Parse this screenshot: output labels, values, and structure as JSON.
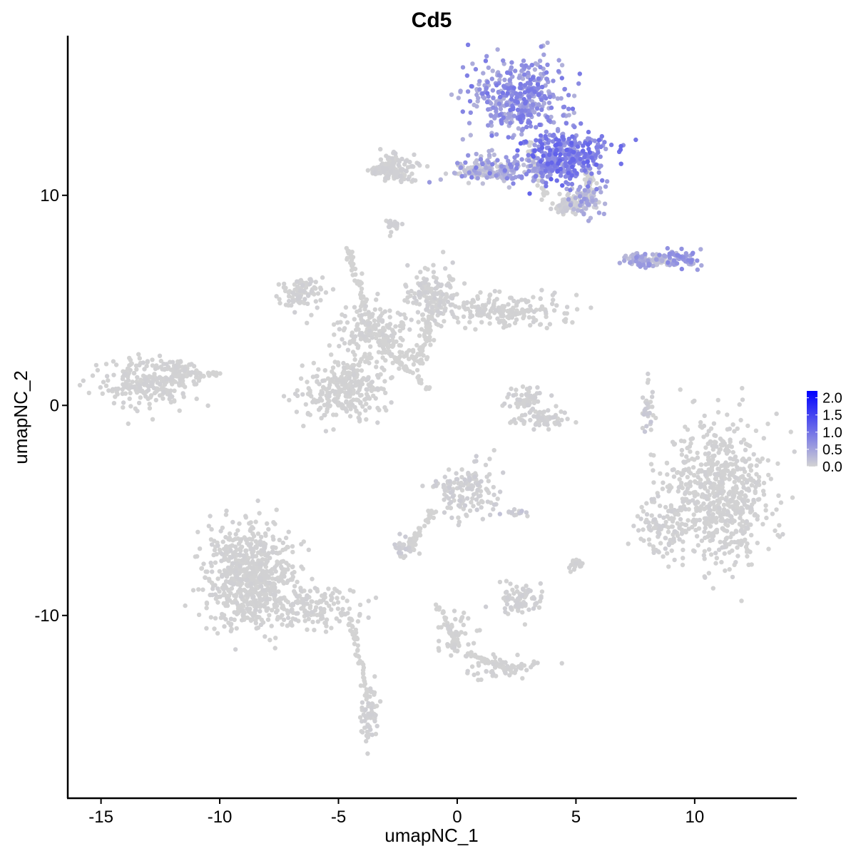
{
  "chart_data": {
    "type": "scatter",
    "title": "Cd5",
    "xlabel": "umapNC_1",
    "ylabel": "umapNC_2",
    "xlim": [
      -16.4,
      14.3
    ],
    "ylim": [
      -18.7,
      17.6
    ],
    "x_ticks": [
      -15,
      -10,
      -5,
      0,
      5,
      10
    ],
    "y_ticks": [
      -10,
      0,
      10
    ],
    "x_tick_labels": [
      "-15",
      "-10",
      "-5",
      "0",
      "5",
      "10"
    ],
    "y_tick_labels": [
      "-10",
      "0",
      "10"
    ],
    "grid": false,
    "color_scale": {
      "low_color": "#d3d3d3",
      "high_color": "#0000ff",
      "min": 0.0,
      "max": 2.2,
      "ticks": [
        0.0,
        0.5,
        1.0,
        1.5,
        2.0
      ],
      "tick_labels": [
        "0.0",
        "0.5",
        "1.0",
        "1.5",
        "2.0"
      ],
      "legend_position": "right"
    },
    "clusters": [
      {
        "cx": 2.6,
        "cy": 14.6,
        "sx": 1.3,
        "sy": 1.1,
        "n": 420,
        "expr": [
          0.35,
          1.0
        ]
      },
      {
        "cx": 4.5,
        "cy": 11.8,
        "sx": 1.1,
        "sy": 0.7,
        "n": 360,
        "expr": [
          0.55,
          1.2
        ]
      },
      {
        "cx": 2.0,
        "cy": 11.2,
        "sx": 1.4,
        "sy": 0.4,
        "n": 150,
        "expr": [
          0.2,
          0.9
        ]
      },
      {
        "cx": 5.4,
        "cy": 9.8,
        "sx": 0.5,
        "sy": 0.4,
        "n": 80,
        "expr": [
          0.0,
          0.7
        ]
      },
      {
        "cx": 4.6,
        "cy": 9.6,
        "sx": 0.4,
        "sy": 0.3,
        "n": 60,
        "expr": [
          0.0,
          0.1
        ]
      },
      {
        "cx": 0.8,
        "cy": 11.2,
        "sx": 0.6,
        "sy": 0.25,
        "n": 60,
        "expr": [
          0.0,
          0.25
        ]
      },
      {
        "cx": -2.6,
        "cy": 11.3,
        "sx": 0.6,
        "sy": 0.4,
        "n": 120,
        "expr": [
          0.0,
          0.05
        ]
      },
      {
        "cx": -3.2,
        "cy": 11.2,
        "sx": 0.3,
        "sy": 0.15,
        "n": 30,
        "expr": [
          0.0,
          0.05
        ]
      },
      {
        "cx": -2.7,
        "cy": 8.6,
        "sx": 0.2,
        "sy": 0.15,
        "n": 25,
        "expr": [
          0.0,
          0.05
        ]
      },
      {
        "cx": 7.7,
        "cy": 6.9,
        "sx": 0.5,
        "sy": 0.2,
        "n": 70,
        "expr": [
          0.2,
          0.7
        ]
      },
      {
        "cx": 9.4,
        "cy": 7.0,
        "sx": 0.5,
        "sy": 0.25,
        "n": 70,
        "expr": [
          0.3,
          0.8
        ]
      },
      {
        "cx": 8.5,
        "cy": 6.9,
        "sx": 0.4,
        "sy": 0.15,
        "n": 30,
        "expr": [
          0.0,
          0.2
        ]
      },
      {
        "cx": -6.6,
        "cy": 5.4,
        "sx": 0.6,
        "sy": 0.5,
        "n": 90,
        "expr": [
          0.0,
          0.05
        ]
      },
      {
        "cx": -1.0,
        "cy": 5.3,
        "sx": 0.7,
        "sy": 0.7,
        "n": 130,
        "expr": [
          0.0,
          0.05
        ]
      },
      {
        "cx": 1.8,
        "cy": 4.5,
        "sx": 1.8,
        "sy": 0.5,
        "n": 200,
        "expr": [
          0.0,
          0.03
        ]
      },
      {
        "cx": -3.6,
        "cy": 3.5,
        "sx": 1.0,
        "sy": 1.0,
        "n": 160,
        "expr": [
          0.0,
          0.03
        ]
      },
      {
        "cx": -4.8,
        "cy": 0.6,
        "sx": 1.1,
        "sy": 0.8,
        "n": 260,
        "expr": [
          0.0,
          0.03
        ]
      },
      {
        "cx": -13.1,
        "cy": 1.1,
        "sx": 1.1,
        "sy": 0.7,
        "n": 230,
        "expr": [
          0.0,
          0.03
        ]
      },
      {
        "cx": -11.6,
        "cy": 1.6,
        "sx": 0.6,
        "sy": 0.4,
        "n": 60,
        "expr": [
          0.0,
          0.03
        ]
      },
      {
        "cx": 3.0,
        "cy": 0.2,
        "sx": 0.6,
        "sy": 0.5,
        "n": 70,
        "expr": [
          0.0,
          0.05
        ]
      },
      {
        "cx": 3.5,
        "cy": -0.7,
        "sx": 0.7,
        "sy": 0.2,
        "n": 50,
        "expr": [
          0.0,
          0.05
        ]
      },
      {
        "cx": 8.0,
        "cy": -0.2,
        "sx": 0.15,
        "sy": 0.7,
        "n": 30,
        "expr": [
          0.0,
          0.15
        ]
      },
      {
        "cx": 11.0,
        "cy": -4.2,
        "sx": 1.5,
        "sy": 2.0,
        "n": 700,
        "expr": [
          0.0,
          0.03
        ]
      },
      {
        "cx": 8.6,
        "cy": -5.8,
        "sx": 0.6,
        "sy": 1.0,
        "n": 80,
        "expr": [
          0.0,
          0.05
        ]
      },
      {
        "cx": 0.3,
        "cy": -4.0,
        "sx": 0.8,
        "sy": 0.8,
        "n": 140,
        "expr": [
          0.0,
          0.08
        ]
      },
      {
        "cx": -2.2,
        "cy": -6.8,
        "sx": 0.4,
        "sy": 0.3,
        "n": 40,
        "expr": [
          0.0,
          0.1
        ]
      },
      {
        "cx": -8.7,
        "cy": -8.2,
        "sx": 1.2,
        "sy": 1.5,
        "n": 650,
        "expr": [
          0.0,
          0.03
        ]
      },
      {
        "cx": -6.0,
        "cy": -9.6,
        "sx": 1.3,
        "sy": 0.6,
        "n": 150,
        "expr": [
          0.0,
          0.03
        ]
      },
      {
        "cx": -3.7,
        "cy": -14.7,
        "sx": 0.25,
        "sy": 0.8,
        "n": 60,
        "expr": [
          0.0,
          0.05
        ]
      },
      {
        "cx": 2.7,
        "cy": -9.3,
        "sx": 0.6,
        "sy": 0.5,
        "n": 80,
        "expr": [
          0.0,
          0.05
        ]
      },
      {
        "cx": 1.9,
        "cy": -12.5,
        "sx": 1.0,
        "sy": 0.3,
        "n": 60,
        "expr": [
          0.0,
          0.03
        ]
      },
      {
        "cx": 0.0,
        "cy": -11.0,
        "sx": 0.5,
        "sy": 0.6,
        "n": 45,
        "expr": [
          0.0,
          0.03
        ]
      },
      {
        "cx": 5.0,
        "cy": -7.6,
        "sx": 0.25,
        "sy": 0.2,
        "n": 20,
        "expr": [
          0.0,
          0.03
        ]
      },
      {
        "cx": 2.6,
        "cy": -5.1,
        "sx": 0.3,
        "sy": 0.1,
        "n": 15,
        "expr": [
          0.0,
          0.2
        ]
      }
    ],
    "bridges": [
      {
        "from": [
          -1.6,
          2.0
        ],
        "to": [
          -1.0,
          5.0
        ],
        "n": 70,
        "jitter": 0.3
      },
      {
        "from": [
          -4.6,
          7.5
        ],
        "to": [
          -3.6,
          3.5
        ],
        "n": 60,
        "jitter": 0.2
      },
      {
        "from": [
          -3.6,
          3.5
        ],
        "to": [
          -1.6,
          2.0
        ],
        "n": 50,
        "jitter": 0.3
      },
      {
        "from": [
          -3.0,
          2.6
        ],
        "to": [
          -1.2,
          0.8
        ],
        "n": 40,
        "jitter": 0.1
      },
      {
        "from": [
          -3.6,
          2.5
        ],
        "to": [
          -4.8,
          1.3
        ],
        "n": 40,
        "jitter": 0.3
      },
      {
        "from": [
          -1.0,
          -5.0
        ],
        "to": [
          -2.0,
          -6.8
        ],
        "n": 40,
        "jitter": 0.15
      },
      {
        "from": [
          -4.5,
          -10.2
        ],
        "to": [
          -3.7,
          -14.0
        ],
        "n": 50,
        "jitter": 0.15
      },
      {
        "from": [
          -0.8,
          -9.6
        ],
        "to": [
          0.0,
          -11.3
        ],
        "n": 40,
        "jitter": 0.15
      },
      {
        "from": [
          0.5,
          -11.8
        ],
        "to": [
          2.3,
          -12.6
        ],
        "n": 40,
        "jitter": 0.1
      },
      {
        "from": [
          3.0,
          12.5
        ],
        "to": [
          3.7,
          10.0
        ],
        "n": 40,
        "jitter": 0.15
      },
      {
        "from": [
          5.5,
          11.3
        ],
        "to": [
          5.6,
          9.8
        ],
        "n": 30,
        "jitter": 0.2
      },
      {
        "from": [
          -10.6,
          1.5
        ],
        "to": [
          -10.0,
          1.5
        ],
        "n": 10,
        "jitter": 0.1
      }
    ]
  }
}
